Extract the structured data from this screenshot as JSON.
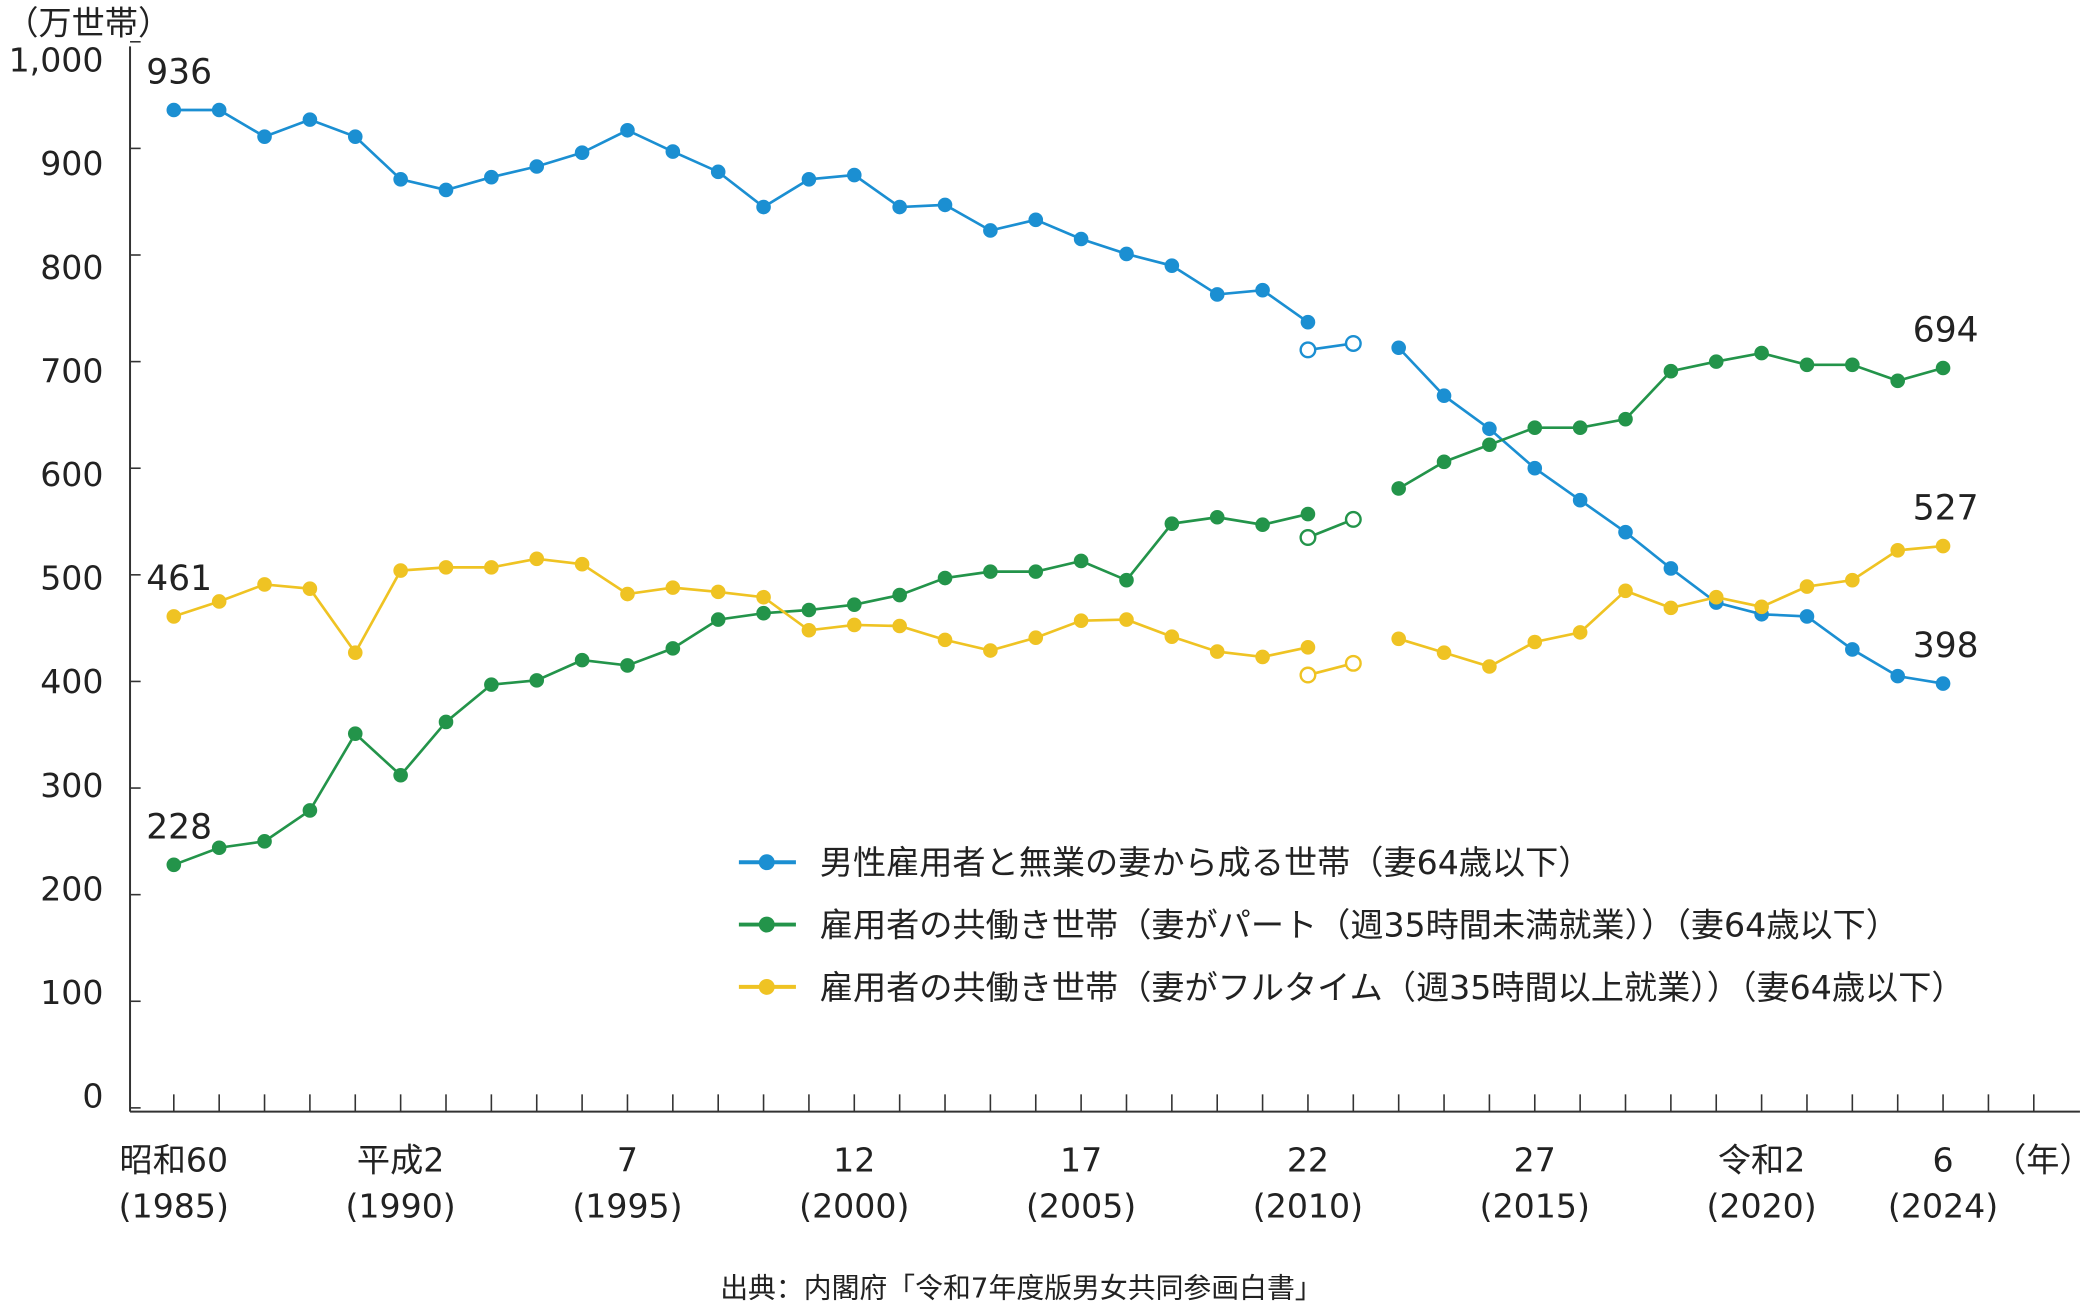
{
  "chart_data": {
    "type": "line",
    "ylabel": "（万世帯）",
    "xunit": "（年）",
    "ylim": [
      0,
      1000
    ],
    "yticks": [
      "0",
      "100",
      "200",
      "300",
      "400",
      "500",
      "600",
      "700",
      "800",
      "900",
      "1,000"
    ],
    "xrange": [
      1985,
      2026
    ],
    "xticks": [
      {
        "year": 1985,
        "era": "昭和60",
        "western": "(1985)"
      },
      {
        "year": 1990,
        "era": "平成2",
        "western": "(1990)"
      },
      {
        "year": 1995,
        "era": "7",
        "western": "(1995)"
      },
      {
        "year": 2000,
        "era": "12",
        "western": "(2000)"
      },
      {
        "year": 2005,
        "era": "17",
        "western": "(2005)"
      },
      {
        "year": 2010,
        "era": "22",
        "western": "(2010)"
      },
      {
        "year": 2015,
        "era": "27",
        "western": "(2015)"
      },
      {
        "year": 2020,
        "era": "令和2",
        "western": "(2020)"
      },
      {
        "year": 2024,
        "era": "6",
        "western": "(2024)"
      }
    ],
    "x": [
      1985,
      1986,
      1987,
      1988,
      1989,
      1990,
      1991,
      1992,
      1993,
      1994,
      1995,
      1996,
      1997,
      1998,
      1999,
      2000,
      2001,
      2002,
      2003,
      2004,
      2005,
      2006,
      2007,
      2008,
      2009,
      2010,
      2011,
      2012,
      2013,
      2014,
      2015,
      2016,
      2017,
      2018,
      2019,
      2020,
      2021,
      2022,
      2023,
      2024
    ],
    "series": [
      {
        "name": "男性雇用者と無業の妻から成る世帯（妻64歳以下）",
        "color": "#1b8fd2",
        "values": [
          936,
          936,
          911,
          927,
          911,
          871,
          861,
          873,
          883,
          896,
          917,
          897,
          878,
          845,
          871,
          875,
          845,
          847,
          823,
          833,
          815,
          801,
          790,
          763,
          767,
          737,
          null,
          713,
          668,
          637,
          600,
          570,
          540,
          506,
          474,
          463,
          461,
          430,
          405,
          398
        ],
        "reference": {
          "x": [
            2010,
            2011
          ],
          "values": [
            711,
            717
          ]
        }
      },
      {
        "name": "雇用者の共働き世帯（妻がパート（週35時間未満就業））（妻64歳以下）",
        "color": "#23944a",
        "values": [
          228,
          244,
          250,
          279,
          351,
          312,
          362,
          397,
          401,
          420,
          415,
          431,
          458,
          464,
          467,
          472,
          481,
          497,
          503,
          503,
          513,
          495,
          548,
          554,
          547,
          557,
          null,
          581,
          606,
          622,
          638,
          638,
          646,
          691,
          700,
          708,
          697,
          697,
          682,
          694
        ],
        "reference": {
          "x": [
            2010,
            2011
          ],
          "values": [
            535,
            552
          ]
        }
      },
      {
        "name": "雇用者の共働き世帯（妻がフルタイム（週35時間以上就業））（妻64歳以下）",
        "color": "#efc323",
        "values": [
          461,
          475,
          491,
          487,
          427,
          504,
          507,
          507,
          515,
          510,
          482,
          488,
          484,
          479,
          448,
          453,
          452,
          439,
          429,
          441,
          457,
          458,
          442,
          428,
          423,
          432,
          null,
          440,
          427,
          414,
          437,
          446,
          485,
          469,
          479,
          470,
          489,
          495,
          523,
          527
        ],
        "reference": {
          "x": [
            2010,
            2011
          ],
          "values": [
            406,
            417
          ]
        }
      }
    ],
    "annotations": [
      {
        "text": "936",
        "series": 0,
        "year": 1985
      },
      {
        "text": "228",
        "series": 1,
        "year": 1985
      },
      {
        "text": "461",
        "series": 2,
        "year": 1985
      },
      {
        "text": "694",
        "series": 1,
        "year": 2024
      },
      {
        "text": "527",
        "series": 2,
        "year": 2024
      },
      {
        "text": "398",
        "series": 0,
        "year": 2024
      }
    ],
    "legend_position": "center-right",
    "source": "出典：内閣府「令和7年度版男女共同参画白書」"
  }
}
